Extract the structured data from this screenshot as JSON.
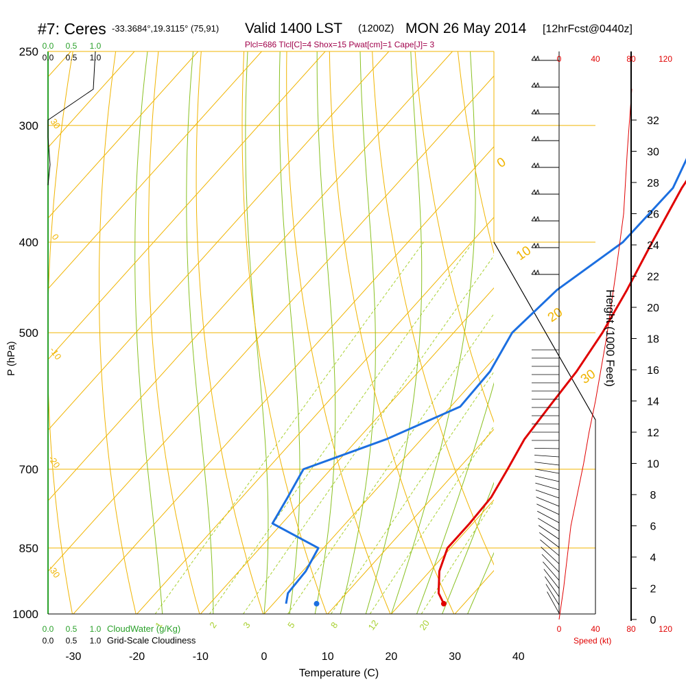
{
  "header": {
    "station": "#7: Ceres",
    "coords": "-33.3684°,19.3115° (75,91)",
    "valid": "Valid 1400 LST",
    "utc": "(1200Z)",
    "date": "MON 26 May 2014",
    "forecast": "[12hrFcst@0440z]"
  },
  "indices": "Plcl=686 Tlcl[C]=4 Shox=15 Pwat[cm]=1 Cape[J]= 3",
  "colors": {
    "temperature": "#e00000",
    "dewpoint": "#1c6fe0",
    "isotherm_isobar": "#f0b400",
    "dry_adiabat": "#f0b400",
    "moist_adiabat": "#88c020",
    "mixing_ratio": "#a8d030",
    "cloud": "#2aa02a",
    "indices": "#a0004a",
    "speed": "#e00000",
    "axis": "#000000"
  },
  "cloud_scale": {
    "ticks_top_green": [
      "0.0",
      "0.5",
      "1.0"
    ],
    "ticks_top_black": [
      "0.0",
      "0.5",
      "1.0"
    ],
    "ticks_bottom_green": [
      "0.0",
      "0.5",
      "1.0"
    ],
    "ticks_bottom_black": [
      "0.0",
      "0.5",
      "1.0"
    ],
    "label_cloudwater": "CloudWater (g/Kg)",
    "label_cloudiness": "Grid-Scale Cloudiness"
  },
  "speed_scale": {
    "top_ticks": [
      "0",
      "40",
      "80",
      "120"
    ],
    "bottom_ticks": [
      "0",
      "40",
      "80",
      "120"
    ],
    "label": "Speed (kt)"
  },
  "chart_data": {
    "type": "skew-t log-p sounding",
    "xlabel": "Temperature (C)",
    "ylabel": "P (hPa)",
    "y2label": "Height (1000 Feet)",
    "x_ticks": [
      -30,
      -20,
      -10,
      0,
      10,
      20,
      30,
      40
    ],
    "pressure_ticks": [
      250,
      300,
      400,
      500,
      700,
      850,
      1000
    ],
    "height_ticks": [
      0,
      2,
      4,
      6,
      8,
      10,
      12,
      14,
      16,
      18,
      20,
      22,
      24,
      26,
      28,
      30,
      32
    ],
    "dry_adiabat_labels": [
      "0",
      "10",
      "20",
      "30",
      "0",
      "-10",
      "-20",
      "-30"
    ],
    "mixing_ratio_labels": [
      "1",
      "2",
      "3",
      "5",
      "8",
      "12",
      "20"
    ],
    "temperature_profile": [
      {
        "p": 975,
        "t": 26.8
      },
      {
        "p": 950,
        "t": 24.5
      },
      {
        "p": 900,
        "t": 21.5
      },
      {
        "p": 850,
        "t": 19.5
      },
      {
        "p": 800,
        "t": 19.5
      },
      {
        "p": 750,
        "t": 19.2
      },
      {
        "p": 700,
        "t": 17.8
      },
      {
        "p": 650,
        "t": 16.2
      },
      {
        "p": 600,
        "t": 15.5
      },
      {
        "p": 550,
        "t": 14.8
      },
      {
        "p": 500,
        "t": 13.4
      },
      {
        "p": 450,
        "t": 11.2
      },
      {
        "p": 400,
        "t": 8.4
      },
      {
        "p": 350,
        "t": 5.4
      },
      {
        "p": 300,
        "t": 3.1
      },
      {
        "p": 255,
        "t": 0.5
      }
    ],
    "dewpoint_profile": [
      {
        "p": 975,
        "t": 2.0
      },
      {
        "p": 950,
        "t": 0.8
      },
      {
        "p": 900,
        "t": 0.5
      },
      {
        "p": 850,
        "t": -0.8
      },
      {
        "p": 800,
        "t": -11.5
      },
      {
        "p": 750,
        "t": -12.8
      },
      {
        "p": 700,
        "t": -14.3
      },
      {
        "p": 650,
        "t": -5.5
      },
      {
        "p": 600,
        "t": 1.5
      },
      {
        "p": 550,
        "t": 1.2
      },
      {
        "p": 500,
        "t": -0.8
      },
      {
        "p": 450,
        "t": 0.2
      },
      {
        "p": 400,
        "t": 3.8
      },
      {
        "p": 350,
        "t": 4.0
      },
      {
        "p": 300,
        "t": -0.2
      },
      {
        "p": 255,
        "t": -3.8
      }
    ],
    "surface_temperature": 26.8,
    "surface_dewpoint": 6.8,
    "wind_speed_profile": [
      {
        "h": 0.0,
        "kt": 0
      },
      {
        "h": 2.0,
        "kt": 5
      },
      {
        "h": 4.0,
        "kt": 9
      },
      {
        "h": 6.0,
        "kt": 13
      },
      {
        "h": 8.0,
        "kt": 20
      },
      {
        "h": 10.0,
        "kt": 27
      },
      {
        "h": 12.0,
        "kt": 33
      },
      {
        "h": 14.0,
        "kt": 40
      },
      {
        "h": 18.0,
        "kt": 52
      },
      {
        "h": 22.0,
        "kt": 62
      },
      {
        "h": 26.0,
        "kt": 71
      },
      {
        "h": 30.0,
        "kt": 75
      },
      {
        "h": 34.0,
        "kt": 80
      }
    ]
  }
}
